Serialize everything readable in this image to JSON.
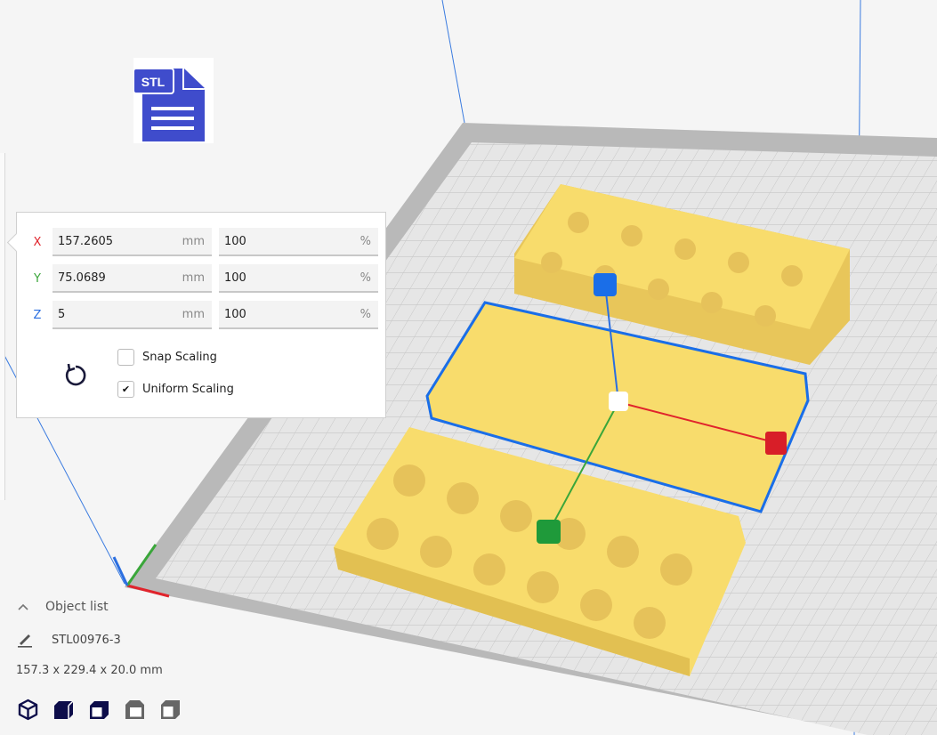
{
  "scale_panel": {
    "rows": [
      {
        "axis": "X",
        "axis_color": "#e0242c",
        "mm_value": "157.2605",
        "mm_unit": "mm",
        "percent_value": "100",
        "percent_unit": "%"
      },
      {
        "axis": "Y",
        "axis_color": "#3aa63a",
        "mm_value": "75.0689",
        "mm_unit": "mm",
        "percent_value": "100",
        "percent_unit": "%"
      },
      {
        "axis": "Z",
        "axis_color": "#2a6ee0",
        "mm_value": "5",
        "mm_unit": "mm",
        "percent_value": "100",
        "percent_unit": "%"
      }
    ],
    "snap_scaling": {
      "label": "Snap Scaling",
      "checked": false
    },
    "uniform_scaling": {
      "label": "Uniform Scaling",
      "checked": true,
      "check_glyph": "✔"
    },
    "reset_icon": "reset-icon"
  },
  "object_list": {
    "label": "Object list",
    "object_name": "STL00976-3",
    "dimensions": "157.3 x 229.4 x 20.0 mm",
    "view_buttons": [
      "3d-view",
      "front-view",
      "top-view",
      "left-view",
      "right-view"
    ]
  },
  "file_icon": {
    "text": "STL",
    "color": "#3f4ccc"
  },
  "colors": {
    "model": "#f8dc6c",
    "selection": "#1a6ee8",
    "plate": "#e4e4e4",
    "plate_border": "#b8b8b8"
  }
}
